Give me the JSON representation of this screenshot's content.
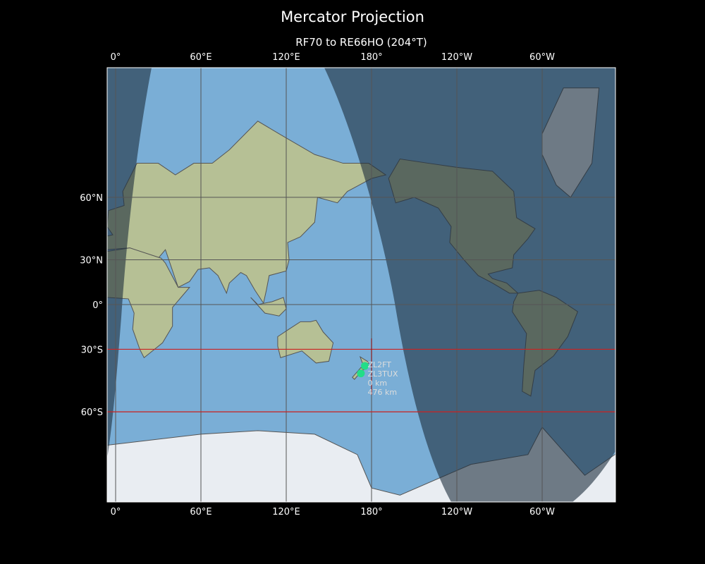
{
  "figure": {
    "title": "Mercator Projection",
    "subtitle": "RF70 to RE66HO (204°T)"
  },
  "axes": {
    "lon_ticks": [
      {
        "value": 0,
        "label": "0°"
      },
      {
        "value": 60,
        "label": "60°E"
      },
      {
        "value": 120,
        "label": "120°E"
      },
      {
        "value": 180,
        "label": "180°"
      },
      {
        "value": 240,
        "label": "120°W"
      },
      {
        "value": 300,
        "label": "60°W"
      }
    ],
    "lat_ticks": [
      {
        "value": 60,
        "label": "60°N"
      },
      {
        "value": 30,
        "label": "30°N"
      },
      {
        "value": 0,
        "label": "0°"
      },
      {
        "value": -30,
        "label": "30°S"
      },
      {
        "value": -60,
        "label": "60°S"
      }
    ],
    "lon_range": [
      -6,
      352
    ],
    "lat_range": [
      -79,
      82
    ]
  },
  "highlight_latitudes": [
    -30,
    -60
  ],
  "stations": [
    {
      "call": "ZL2FT",
      "lon": 175.3,
      "lat": -39.6
    },
    {
      "call": "ZL3TUX",
      "lon": 172.5,
      "lat": -43.5,
      "distance": "0 km"
    }
  ],
  "path_distance": "476 km",
  "colors": {
    "ocean_day": "#7aaed6",
    "ocean_night": "#3e5a73",
    "land": "#b9c49a",
    "ice": "#eef1f5",
    "grid": "#555555",
    "highlight": "#cc2222",
    "marker": "#22dd88"
  }
}
